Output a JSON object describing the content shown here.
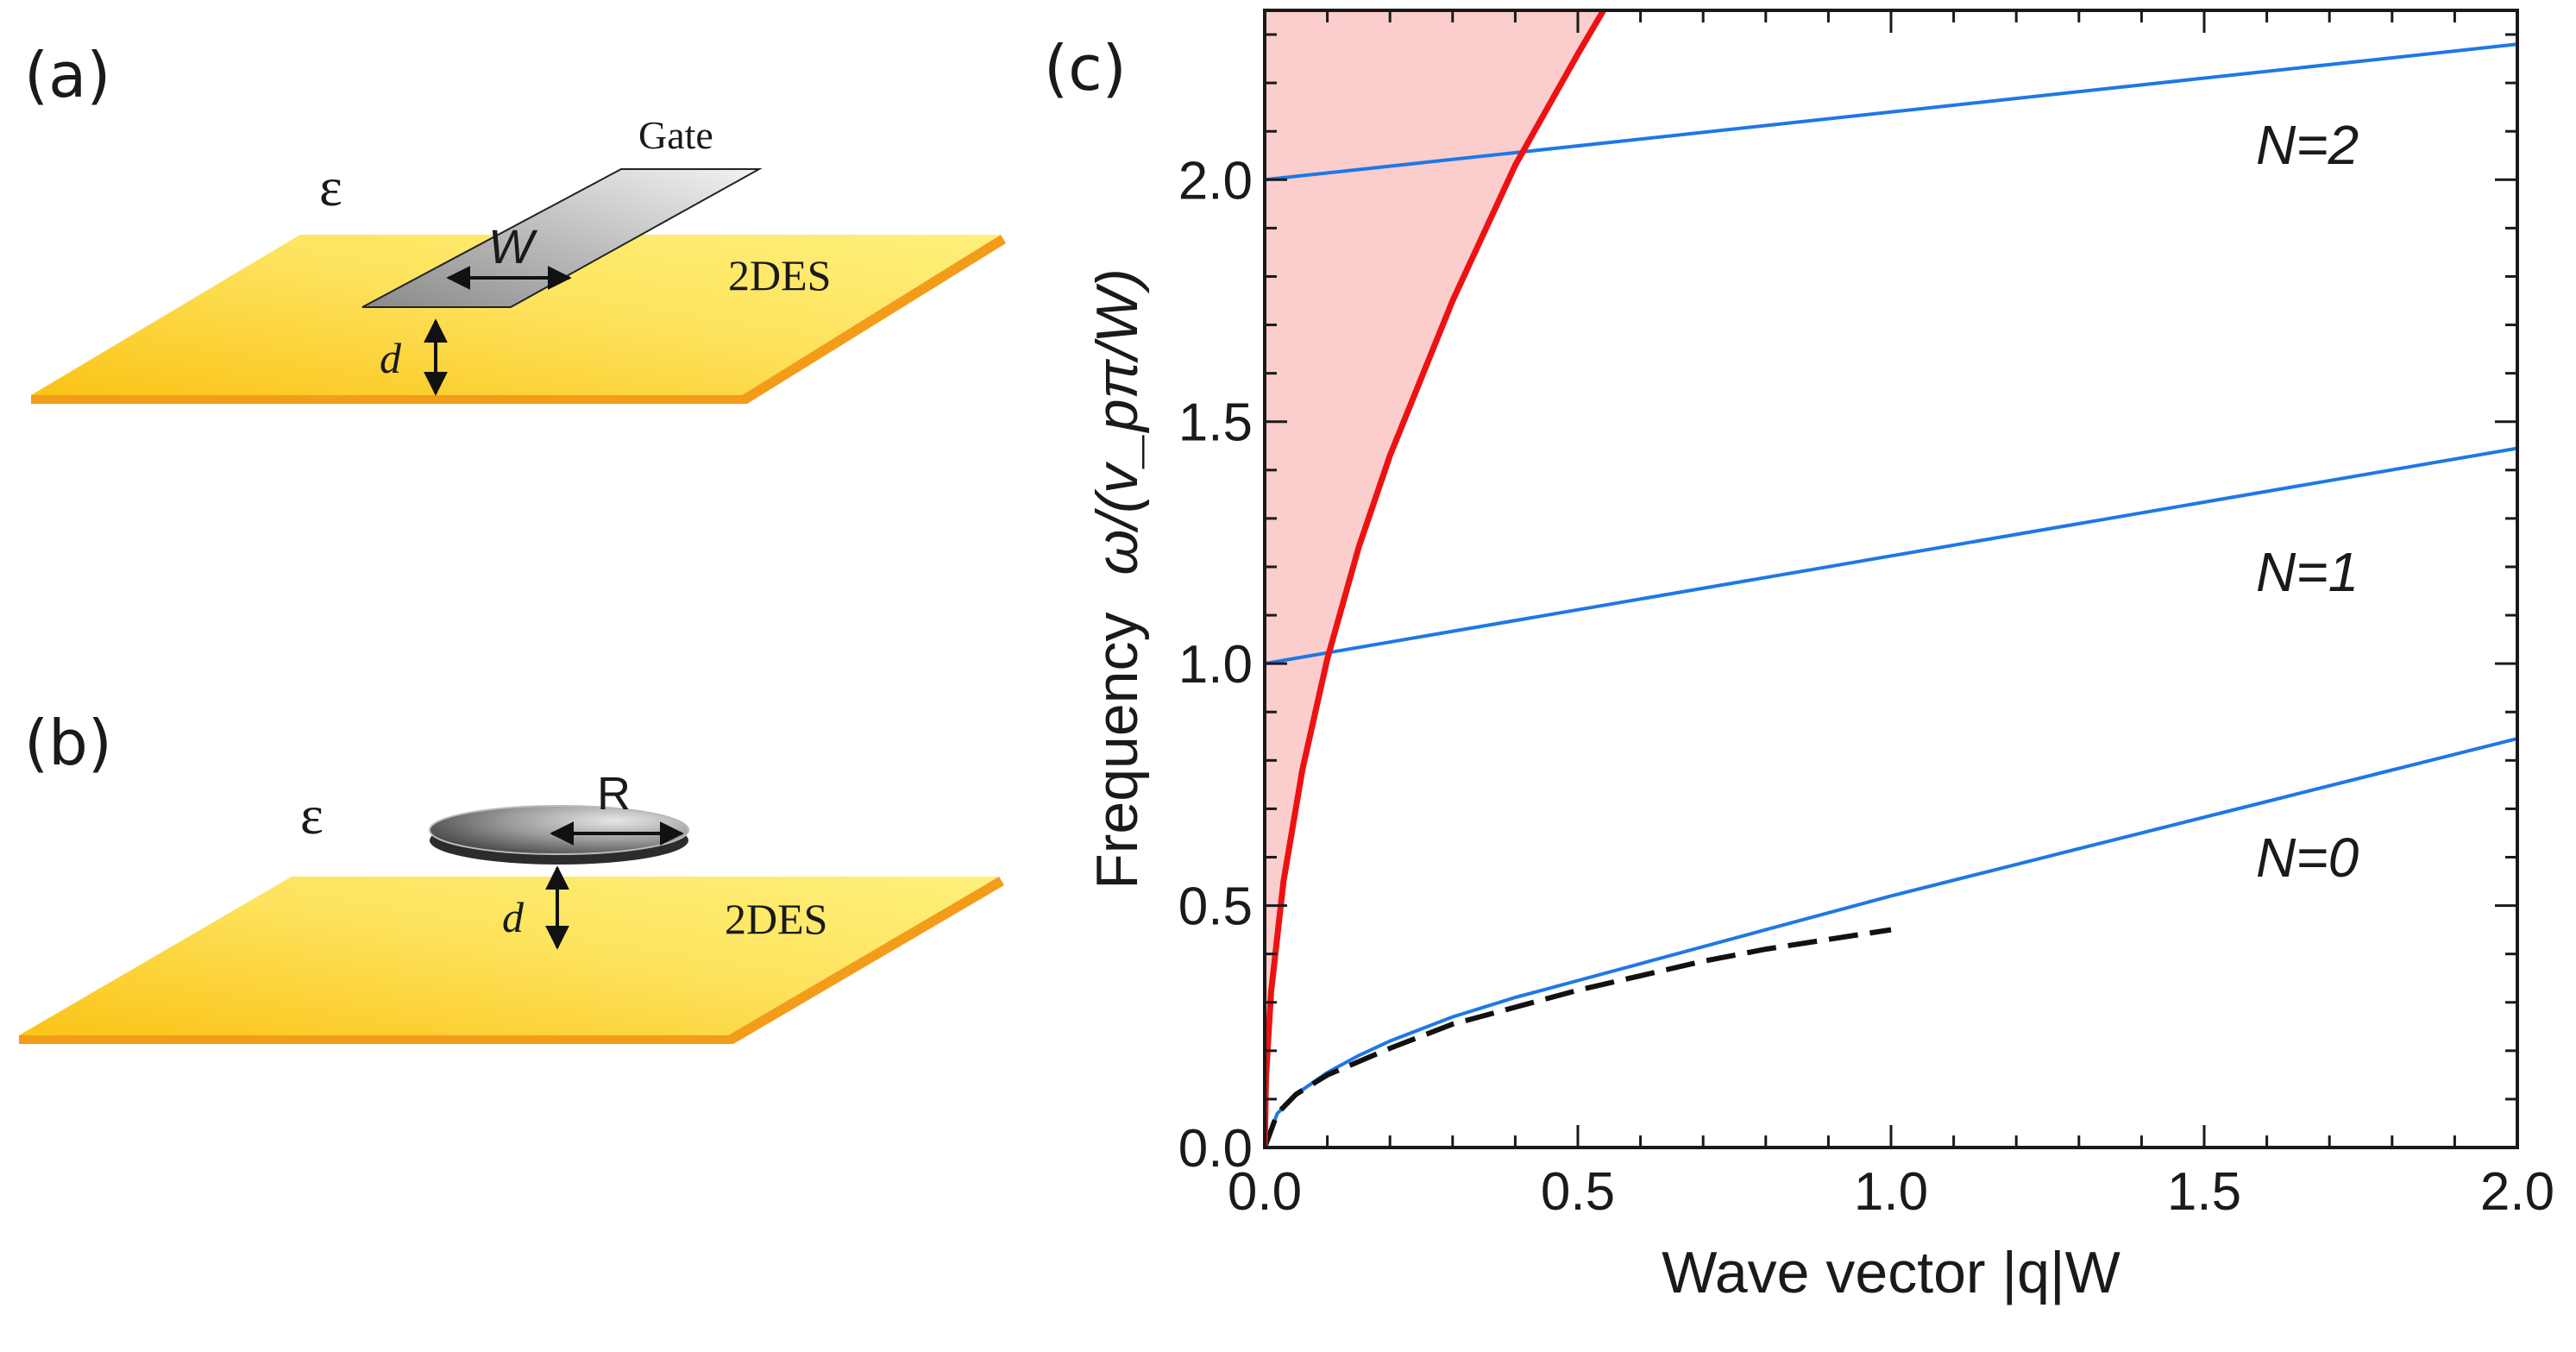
{
  "panels": {
    "a": {
      "label": "(a)",
      "gate_label": "Gate",
      "epsilon_label": "ε",
      "width_label": "W",
      "distance_label": "d",
      "plane_label": "2DES"
    },
    "b": {
      "label": "(b)",
      "epsilon_label": "ε",
      "radius_label": "R",
      "distance_label": "d",
      "plane_label": "2DES"
    },
    "c": {
      "label": "(c)"
    }
  },
  "colors": {
    "plane": "#fcd132",
    "plane_edge": "#f39c1a",
    "gate": "#a8a8a8",
    "light_cone_fill": "#fccdcd",
    "light_line": "#ee1111",
    "mode_line": "#1e78e6",
    "asymptote": "#111111"
  },
  "chart_data": {
    "type": "line",
    "xlabel": "Wave vector |q|W",
    "ylabel_prefix": "Frequency",
    "ylabel_math": "ω/(v_pπ/W)",
    "xlim": [
      0,
      2.0
    ],
    "ylim": [
      0,
      2.35
    ],
    "x_ticks": [
      {
        "value": 0.0,
        "label": "0.0"
      },
      {
        "value": 0.5,
        "label": "0.5"
      },
      {
        "value": 1.0,
        "label": "1.0"
      },
      {
        "value": 1.5,
        "label": "1.5"
      },
      {
        "value": 2.0,
        "label": "2.0"
      }
    ],
    "y_ticks": [
      {
        "value": 0.0,
        "label": "0.0"
      },
      {
        "value": 0.5,
        "label": "0.5"
      },
      {
        "value": 1.0,
        "label": "1.0"
      },
      {
        "value": 1.5,
        "label": "1.5"
      },
      {
        "value": 2.0,
        "label": "2.0"
      }
    ],
    "light_line": {
      "name": "light line",
      "x": [
        0,
        0.002,
        0.01,
        0.03,
        0.06,
        0.1,
        0.15,
        0.2,
        0.3,
        0.4,
        0.5,
        0.55
      ],
      "y": [
        0,
        0.145,
        0.32,
        0.55,
        0.78,
        1.01,
        1.24,
        1.43,
        1.75,
        2.03,
        2.26,
        2.37
      ]
    },
    "series": [
      {
        "name": "N=2",
        "label": "N=2",
        "x": [
          0,
          2.0
        ],
        "y": [
          2.0,
          2.28
        ]
      },
      {
        "name": "N=1",
        "label": "N=1",
        "x": [
          0,
          2.0
        ],
        "y": [
          1.0,
          1.445
        ]
      },
      {
        "name": "N=0",
        "label": "N=0",
        "x": [
          0,
          0.02,
          0.05,
          0.1,
          0.15,
          0.2,
          0.3,
          0.4,
          0.5,
          0.6,
          0.8,
          1.0,
          1.2,
          1.4,
          1.6,
          1.8,
          2.0
        ],
        "y": [
          0,
          0.07,
          0.11,
          0.155,
          0.19,
          0.22,
          0.27,
          0.31,
          0.345,
          0.38,
          0.45,
          0.52,
          0.585,
          0.65,
          0.715,
          0.78,
          0.845
        ]
      }
    ],
    "asymptote": {
      "name": "asymptote",
      "style": "dashed",
      "x": [
        0,
        0.02,
        0.05,
        0.1,
        0.2,
        0.3,
        0.4,
        0.5,
        0.6,
        0.7,
        0.8,
        0.9,
        1.0
      ],
      "y": [
        0,
        0.07,
        0.11,
        0.15,
        0.205,
        0.255,
        0.29,
        0.325,
        0.355,
        0.385,
        0.41,
        0.43,
        0.45
      ]
    }
  }
}
